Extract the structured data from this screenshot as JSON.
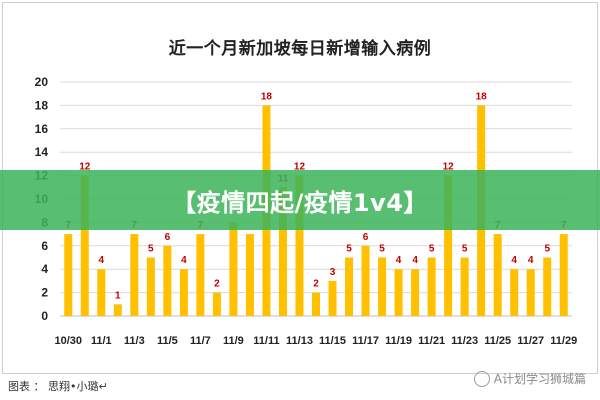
{
  "chart_data": {
    "type": "bar",
    "title": "近一个月新加坡每日新增输入病例",
    "xlabel": "",
    "ylabel": "",
    "ylim": [
      0,
      20
    ],
    "yticks": [
      0,
      2,
      4,
      6,
      8,
      10,
      12,
      14,
      16,
      18,
      20
    ],
    "categories": [
      "10/30",
      "10/31",
      "11/1",
      "11/2",
      "11/3",
      "11/4",
      "11/5",
      "11/6",
      "11/7",
      "11/8",
      "11/9",
      "11/10",
      "11/11",
      "11/12",
      "11/13",
      "11/14",
      "11/15",
      "11/16",
      "11/17",
      "11/18",
      "11/19",
      "11/20",
      "11/21",
      "11/22",
      "11/23",
      "11/24",
      "11/25",
      "11/26",
      "11/27",
      "11/28",
      "11/29"
    ],
    "xtick_labels": [
      "10/30",
      "11/1",
      "11/3",
      "11/5",
      "11/7",
      "11/9",
      "11/11",
      "11/13",
      "11/15",
      "11/17",
      "11/19",
      "11/21",
      "11/23",
      "11/25",
      "11/27",
      "11/29"
    ],
    "values": [
      7,
      12,
      4,
      1,
      7,
      5,
      6,
      4,
      7,
      2,
      8,
      7,
      18,
      11,
      12,
      2,
      3,
      5,
      6,
      5,
      4,
      4,
      5,
      12,
      5,
      18,
      7,
      4,
      4,
      5,
      7
    ],
    "data_labels": [
      "7",
      "12",
      "4",
      "1",
      "7",
      "5",
      "6",
      "4",
      "7",
      "2",
      "",
      "",
      "18",
      "11",
      "12",
      "2",
      "3",
      "5",
      "6",
      "5",
      "4",
      "4",
      "5",
      "12",
      "5",
      "18",
      "7",
      "4",
      "4",
      "5",
      "7"
    ],
    "grid": true,
    "colors": {
      "bar": "#FFC000",
      "label": "#C00000",
      "grid": "#D9D9D9"
    }
  },
  "overlay": {
    "banner_text": "【疫情四起/疫情1v4】"
  },
  "footer": {
    "caption": "图表 ： 思翔•小璐↵",
    "watermark": "A计划学习狮城篇"
  }
}
